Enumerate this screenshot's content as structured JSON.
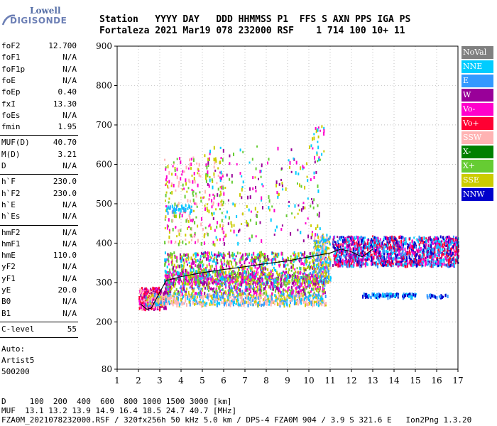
{
  "logo": {
    "line1": "Lowell",
    "line2": "DIGISONDE"
  },
  "header": {
    "labels": "Station   YYYY DAY   DDD HHMMSS P1  FFS S AXN PPS IGA PS",
    "values": "Fortaleza 2021 Mar19 078 232000 RSF    1 714 100 10+ 11"
  },
  "params": {
    "group1": [
      {
        "name": "foF2",
        "value": "12.700"
      },
      {
        "name": "foF1",
        "value": "N/A"
      },
      {
        "name": "foF1p",
        "value": "N/A"
      },
      {
        "name": "foE",
        "value": "N/A"
      },
      {
        "name": "foEp",
        "value": "0.40"
      },
      {
        "name": "fxI",
        "value": "13.30"
      },
      {
        "name": "foEs",
        "value": "N/A"
      },
      {
        "name": "fmin",
        "value": "1.95"
      }
    ],
    "group2": [
      {
        "name": "MUF(D)",
        "value": "40.70"
      },
      {
        "name": "M(D)",
        "value": "3.21"
      },
      {
        "name": "D",
        "value": "N/A"
      }
    ],
    "group3": [
      {
        "name": "h`F",
        "value": "230.0"
      },
      {
        "name": "h`F2",
        "value": "230.0"
      },
      {
        "name": "h`E",
        "value": "N/A"
      },
      {
        "name": "h`Es",
        "value": "N/A"
      }
    ],
    "group4": [
      {
        "name": "hmF2",
        "value": "N/A"
      },
      {
        "name": "hmF1",
        "value": "N/A"
      },
      {
        "name": "hmE",
        "value": "110.0"
      },
      {
        "name": "yF2",
        "value": "N/A"
      },
      {
        "name": "yF1",
        "value": "N/A"
      },
      {
        "name": "yE",
        "value": "20.0"
      },
      {
        "name": "B0",
        "value": "N/A"
      },
      {
        "name": "B1",
        "value": "N/A"
      }
    ],
    "group5": [
      {
        "name": "C-level",
        "value": "55"
      }
    ]
  },
  "auto": {
    "line1": "Auto:",
    "line2": "Artist5",
    "line3": "500200"
  },
  "legend": [
    {
      "label": "NoVal",
      "color": "#808080"
    },
    {
      "label": "NNE",
      "color": "#00ccff"
    },
    {
      "label": "E",
      "color": "#3399ff"
    },
    {
      "label": "W",
      "color": "#990099"
    },
    {
      "label": "Vo-",
      "color": "#ff00cc"
    },
    {
      "label": "Vo+",
      "color": "#ff0033"
    },
    {
      "label": "SSW",
      "color": "#ffb3b3"
    },
    {
      "label": "X-",
      "color": "#008000"
    },
    {
      "label": "X+",
      "color": "#66cc33"
    },
    {
      "label": "SSE",
      "color": "#cccc00"
    },
    {
      "label": "NNW",
      "color": "#0000cc"
    }
  ],
  "footer": {
    "line1": "D     100  200  400  600  800 1000 1500 3000 [km]",
    "line2": "MUF  13.1 13.2 13.9 14.9 16.4 18.5 24.7 40.7 [MHz]",
    "line3": "FZA0M_2021078232000.RSF / 320fx256h 50 kHz 5.0 km / DPS-4 FZA0M 904 / 3.9 S 321.6 E   Ion2Png 1.3.20"
  },
  "chart_data": {
    "type": "scatter",
    "xlim": [
      1,
      17
    ],
    "ylim": [
      80,
      900
    ],
    "x_ticks": [
      "1",
      "2",
      "3",
      "4",
      "5",
      "6",
      "7",
      "8",
      "9",
      "10",
      "11",
      "12",
      "13",
      "14",
      "15",
      "16",
      "17"
    ],
    "y_ticks": [
      "80",
      "200",
      "300",
      "400",
      "500",
      "600",
      "700",
      "800",
      "900"
    ],
    "grid": "dotted",
    "trace": {
      "x": [
        2.1,
        2.4,
        2.6,
        2.9,
        3.3,
        4.0,
        5.0,
        6.0,
        7.0,
        8.0,
        9.0,
        10.0,
        11.0,
        11.5,
        12.0,
        12.5,
        13.0
      ],
      "y": [
        245,
        232,
        235,
        265,
        305,
        315,
        325,
        333,
        340,
        348,
        355,
        365,
        375,
        385,
        378,
        365,
        385
      ]
    },
    "echo_clusters": [
      {
        "x": [
          2.0,
          3.3
        ],
        "y": [
          235,
          290
        ],
        "colors": [
          "#ffb3b3",
          "#ff00cc",
          "#990099",
          "#ff0033"
        ],
        "n": 300
      },
      {
        "x": [
          2.3,
          10.8
        ],
        "y": [
          245,
          275
        ],
        "colors": [
          "#ffb3b3",
          "#ffb3b3",
          "#00ccff",
          "#3399ff",
          "#cccc00"
        ],
        "n": 700
      },
      {
        "x": [
          3.2,
          10.8
        ],
        "y": [
          275,
          330
        ],
        "colors": [
          "#990099",
          "#ff00cc",
          "#3399ff",
          "#cccc00",
          "#66cc33"
        ],
        "n": 900
      },
      {
        "x": [
          3.2,
          10.8
        ],
        "y": [
          300,
          380
        ],
        "colors": [
          "#cccc00",
          "#66cc33",
          "#00ccff",
          "#990099",
          "#ff00cc"
        ],
        "n": 900
      },
      {
        "x": [
          10.2,
          11.0
        ],
        "y": [
          300,
          425
        ],
        "colors": [
          "#00ccff",
          "#3399ff",
          "#cccc00",
          "#ffb3b3"
        ],
        "n": 220
      },
      {
        "x": [
          11.1,
          17.0
        ],
        "y": [
          345,
          420
        ],
        "colors": [
          "#ff0033",
          "#ff00cc",
          "#0000cc",
          "#990099",
          "#3399ff",
          "#00ccff"
        ],
        "n": 1500
      },
      {
        "x": [
          12.5,
          15.0
        ],
        "y": [
          265,
          275
        ],
        "colors": [
          "#3399ff",
          "#0000cc",
          "#00ccff"
        ],
        "n": 120
      },
      {
        "x": [
          15.5,
          16.5
        ],
        "y": [
          265,
          273
        ],
        "colors": [
          "#0000cc",
          "#3399ff"
        ],
        "n": 30
      },
      {
        "x": [
          3.2,
          6.0
        ],
        "y": [
          400,
          620
        ],
        "colors": [
          "#cccc00",
          "#ffb3b3",
          "#66cc33",
          "#ff00cc"
        ],
        "n": 260
      },
      {
        "x": [
          5.0,
          10.5
        ],
        "y": [
          400,
          650
        ],
        "colors": [
          "#cccc00",
          "#00ccff",
          "#990099",
          "#ff00cc",
          "#66cc33"
        ],
        "n": 220
      },
      {
        "x": [
          3.3,
          4.5
        ],
        "y": [
          480,
          500
        ],
        "colors": [
          "#00ccff",
          "#3399ff"
        ],
        "n": 40
      },
      {
        "x": [
          10.0,
          10.7
        ],
        "y": [
          620,
          700
        ],
        "colors": [
          "#00ccff",
          "#cccc00",
          "#ff00cc"
        ],
        "n": 25
      }
    ]
  }
}
